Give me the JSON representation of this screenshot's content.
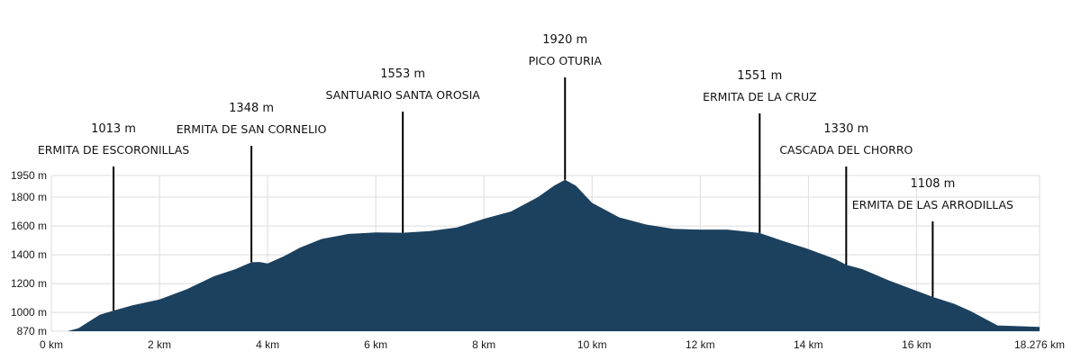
{
  "chart_data": {
    "type": "area",
    "title": "",
    "xlabel": "",
    "ylabel": "",
    "xlim": [
      0,
      18.276
    ],
    "ylim": [
      870,
      1950
    ],
    "x_ticks": [
      0,
      2,
      4,
      6,
      8,
      10,
      12,
      14,
      16,
      18.276
    ],
    "x_tick_labels": [
      "0 km",
      "2 km",
      "4 km",
      "6 km",
      "8 km",
      "10 km",
      "12 km",
      "14 km",
      "16 km",
      "18.276 km"
    ],
    "y_ticks": [
      870,
      1000,
      1200,
      1400,
      1600,
      1800,
      1950
    ],
    "y_tick_labels": [
      "870 m",
      "1000 m",
      "1200 m",
      "1400 m",
      "1600 m",
      "1800 m",
      "1950 m"
    ],
    "grid": true,
    "fill_color": "#1c415f",
    "series": [
      {
        "x": [
          0,
          0.3,
          0.5,
          0.75,
          0.9,
          1.15,
          1.5,
          2.0,
          2.5,
          3.0,
          3.4,
          3.7,
          3.85,
          4.0,
          4.3,
          4.6,
          5.0,
          5.5,
          5.9,
          6.0,
          6.5,
          7.0,
          7.5,
          8.0,
          8.5,
          9.0,
          9.3,
          9.5,
          9.7,
          10.0,
          10.5,
          11.0,
          11.5,
          12.0,
          12.5,
          13.1,
          13.5,
          14.0,
          14.5,
          14.7,
          15.0,
          15.5,
          16.0,
          16.3,
          16.7,
          17.0,
          17.3,
          17.5,
          18.276
        ],
        "y": [
          870,
          870,
          890,
          950,
          985,
          1013,
          1050,
          1090,
          1160,
          1250,
          1300,
          1348,
          1350,
          1340,
          1390,
          1450,
          1510,
          1545,
          1553,
          1555,
          1553,
          1565,
          1590,
          1650,
          1700,
          1800,
          1880,
          1920,
          1880,
          1760,
          1660,
          1610,
          1580,
          1575,
          1575,
          1551,
          1500,
          1440,
          1370,
          1330,
          1300,
          1220,
          1150,
          1108,
          1060,
          1010,
          950,
          910,
          900
        ]
      }
    ],
    "annotations": [
      {
        "x": 1.15,
        "elevation": "1013 m",
        "name": "ERMITA DE ESCORONILLAS"
      },
      {
        "x": 3.7,
        "elevation": "1348 m",
        "name": "ERMITA DE SAN CORNELIO"
      },
      {
        "x": 6.5,
        "elevation": "1553 m",
        "name": "SANTUARIO SANTA OROSIA"
      },
      {
        "x": 9.5,
        "elevation": "1920 m",
        "name": "PICO OTURIA"
      },
      {
        "x": 13.1,
        "elevation": "1551 m",
        "name": "ERMITA DE LA CRUZ"
      },
      {
        "x": 14.7,
        "elevation": "1330 m",
        "name": "CASCADA DEL CHORRO"
      },
      {
        "x": 16.3,
        "elevation": "1108 m",
        "name": "ERMITA DE LAS ARRODILLAS"
      }
    ]
  }
}
